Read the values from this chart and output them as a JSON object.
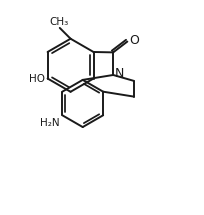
{
  "bg_color": "#ffffff",
  "line_color": "#1a1a1a",
  "line_width": 1.4,
  "font_size": 7.5,
  "label_color": "#1a1a1a",
  "figsize": [
    2.04,
    2.15
  ],
  "dpi": 100,
  "xlim": [
    0,
    10.2
  ],
  "ylim": [
    0,
    10.8
  ]
}
